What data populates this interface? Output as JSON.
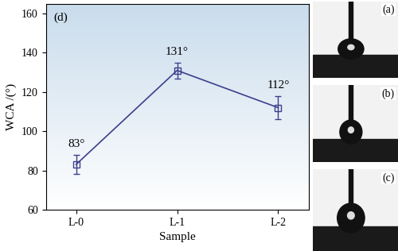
{
  "chart_data": {
    "type": "line",
    "x_label": "Sample",
    "y_label": "WCA /(°)",
    "categories": [
      "L-0",
      "L-1",
      "L-2"
    ],
    "values": [
      83,
      131,
      112
    ],
    "errors": [
      5,
      4,
      6
    ],
    "value_labels": [
      "83°",
      "131°",
      "112°"
    ],
    "data_labels": true,
    "color": "#3b3f8c",
    "marker": "square",
    "line_style": "solid",
    "ylim": [
      60,
      165
    ],
    "yticks": [
      60,
      80,
      100,
      120,
      140,
      160
    ],
    "grid": false,
    "annotations": [
      "(d)",
      "(a)",
      "(b)",
      "(c)"
    ]
  }
}
